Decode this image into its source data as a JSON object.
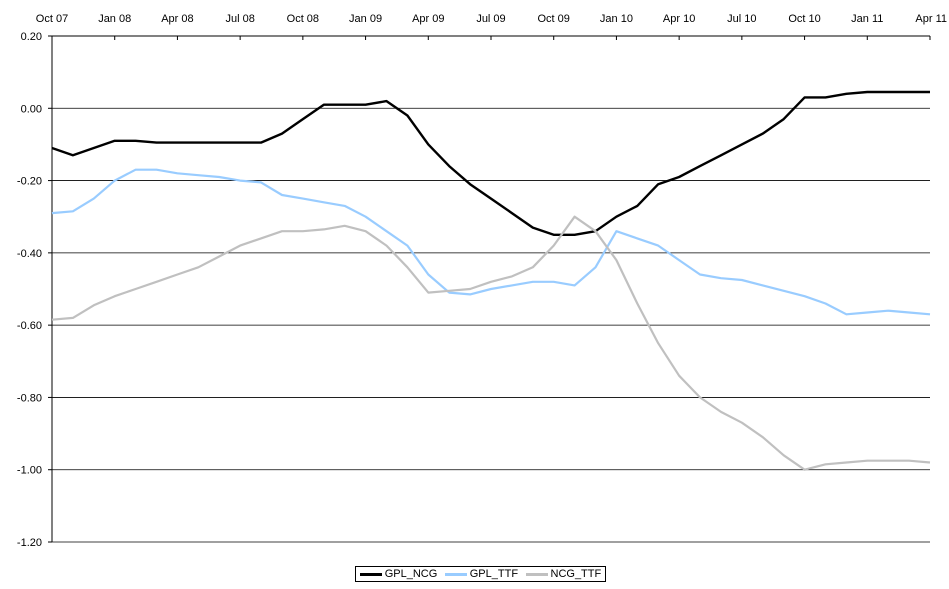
{
  "chart_data": {
    "type": "line",
    "title": "",
    "xlabel": "",
    "ylabel": "",
    "x_ticks": [
      "Oct 07",
      "Jan 08",
      "Apr 08",
      "Jul 08",
      "Oct 08",
      "Jan 09",
      "Apr 09",
      "Jul 09",
      "Oct 09",
      "Jan 10",
      "Apr 10",
      "Jul 10",
      "Oct 10",
      "Jan 11",
      "Apr 11"
    ],
    "x_range": [
      "2007-10",
      "2011-04"
    ],
    "ylim": [
      -1.2,
      0.2
    ],
    "y_ticks": [
      "0.20",
      "0.00",
      "-0.20",
      "-0.40",
      "-0.60",
      "-0.80",
      "-1.00",
      "-1.20"
    ],
    "y_tick_values": [
      0.2,
      0.0,
      -0.2,
      -0.4,
      -0.6,
      -0.8,
      -1.0,
      -1.2
    ],
    "grid": "horizontal",
    "legend_position": "bottom",
    "series": [
      {
        "name": "GPL_NCG",
        "color": "#000000",
        "points": [
          [
            "2007-10",
            -0.11
          ],
          [
            "2007-11",
            -0.13
          ],
          [
            "2007-12",
            -0.11
          ],
          [
            "2008-01",
            -0.09
          ],
          [
            "2008-02",
            -0.09
          ],
          [
            "2008-03",
            -0.095
          ],
          [
            "2008-04",
            -0.095
          ],
          [
            "2008-05",
            -0.095
          ],
          [
            "2008-06",
            -0.095
          ],
          [
            "2008-07",
            -0.095
          ],
          [
            "2008-08",
            -0.095
          ],
          [
            "2008-09",
            -0.07
          ],
          [
            "2008-10",
            -0.03
          ],
          [
            "2008-11",
            0.01
          ],
          [
            "2008-12",
            0.01
          ],
          [
            "2009-01",
            0.01
          ],
          [
            "2009-02",
            0.02
          ],
          [
            "2009-03",
            -0.02
          ],
          [
            "2009-04",
            -0.1
          ],
          [
            "2009-05",
            -0.16
          ],
          [
            "2009-06",
            -0.21
          ],
          [
            "2009-07",
            -0.25
          ],
          [
            "2009-08",
            -0.29
          ],
          [
            "2009-09",
            -0.33
          ],
          [
            "2009-10",
            -0.35
          ],
          [
            "2009-11",
            -0.35
          ],
          [
            "2009-12",
            -0.34
          ],
          [
            "2010-01",
            -0.3
          ],
          [
            "2010-02",
            -0.27
          ],
          [
            "2010-03",
            -0.21
          ],
          [
            "2010-04",
            -0.19
          ],
          [
            "2010-05",
            -0.16
          ],
          [
            "2010-06",
            -0.13
          ],
          [
            "2010-07",
            -0.1
          ],
          [
            "2010-08",
            -0.07
          ],
          [
            "2010-09",
            -0.03
          ],
          [
            "2010-10",
            0.03
          ],
          [
            "2010-11",
            0.03
          ],
          [
            "2010-12",
            0.04
          ],
          [
            "2011-01",
            0.045
          ],
          [
            "2011-02",
            0.045
          ],
          [
            "2011-03",
            0.045
          ],
          [
            "2011-04",
            0.045
          ]
        ]
      },
      {
        "name": "GPL_TTF",
        "color": "#99ccff",
        "points": [
          [
            "2007-10",
            -0.29
          ],
          [
            "2007-11",
            -0.285
          ],
          [
            "2007-12",
            -0.25
          ],
          [
            "2008-01",
            -0.2
          ],
          [
            "2008-02",
            -0.17
          ],
          [
            "2008-03",
            -0.17
          ],
          [
            "2008-04",
            -0.18
          ],
          [
            "2008-05",
            -0.185
          ],
          [
            "2008-06",
            -0.19
          ],
          [
            "2008-07",
            -0.2
          ],
          [
            "2008-08",
            -0.205
          ],
          [
            "2008-09",
            -0.24
          ],
          [
            "2008-10",
            -0.25
          ],
          [
            "2008-11",
            -0.26
          ],
          [
            "2008-12",
            -0.27
          ],
          [
            "2009-01",
            -0.3
          ],
          [
            "2009-02",
            -0.34
          ],
          [
            "2009-03",
            -0.38
          ],
          [
            "2009-04",
            -0.46
          ],
          [
            "2009-05",
            -0.51
          ],
          [
            "2009-06",
            -0.515
          ],
          [
            "2009-07",
            -0.5
          ],
          [
            "2009-08",
            -0.49
          ],
          [
            "2009-09",
            -0.48
          ],
          [
            "2009-10",
            -0.48
          ],
          [
            "2009-11",
            -0.49
          ],
          [
            "2009-12",
            -0.44
          ],
          [
            "2010-01",
            -0.34
          ],
          [
            "2010-02",
            -0.36
          ],
          [
            "2010-03",
            -0.38
          ],
          [
            "2010-04",
            -0.42
          ],
          [
            "2010-05",
            -0.46
          ],
          [
            "2010-06",
            -0.47
          ],
          [
            "2010-07",
            -0.475
          ],
          [
            "2010-08",
            -0.49
          ],
          [
            "2010-09",
            -0.505
          ],
          [
            "2010-10",
            -0.52
          ],
          [
            "2010-11",
            -0.54
          ],
          [
            "2010-12",
            -0.57
          ],
          [
            "2011-01",
            -0.565
          ],
          [
            "2011-02",
            -0.56
          ],
          [
            "2011-03",
            -0.565
          ],
          [
            "2011-04",
            -0.57
          ]
        ]
      },
      {
        "name": "NCG_TTF",
        "color": "#c0c0c0",
        "points": [
          [
            "2007-10",
            -0.585
          ],
          [
            "2007-11",
            -0.58
          ],
          [
            "2007-12",
            -0.545
          ],
          [
            "2008-01",
            -0.52
          ],
          [
            "2008-02",
            -0.5
          ],
          [
            "2008-03",
            -0.48
          ],
          [
            "2008-04",
            -0.46
          ],
          [
            "2008-05",
            -0.44
          ],
          [
            "2008-06",
            -0.41
          ],
          [
            "2008-07",
            -0.38
          ],
          [
            "2008-08",
            -0.36
          ],
          [
            "2008-09",
            -0.34
          ],
          [
            "2008-10",
            -0.34
          ],
          [
            "2008-11",
            -0.335
          ],
          [
            "2008-12",
            -0.325
          ],
          [
            "2009-01",
            -0.34
          ],
          [
            "2009-02",
            -0.38
          ],
          [
            "2009-03",
            -0.44
          ],
          [
            "2009-04",
            -0.51
          ],
          [
            "2009-05",
            -0.505
          ],
          [
            "2009-06",
            -0.5
          ],
          [
            "2009-07",
            -0.48
          ],
          [
            "2009-08",
            -0.465
          ],
          [
            "2009-09",
            -0.44
          ],
          [
            "2009-10",
            -0.38
          ],
          [
            "2009-11",
            -0.3
          ],
          [
            "2009-12",
            -0.34
          ],
          [
            "2010-01",
            -0.42
          ],
          [
            "2010-02",
            -0.54
          ],
          [
            "2010-03",
            -0.65
          ],
          [
            "2010-04",
            -0.74
          ],
          [
            "2010-05",
            -0.8
          ],
          [
            "2010-06",
            -0.84
          ],
          [
            "2010-07",
            -0.87
          ],
          [
            "2010-08",
            -0.91
          ],
          [
            "2010-09",
            -0.96
          ],
          [
            "2010-10",
            -1.0
          ],
          [
            "2010-11",
            -0.985
          ],
          [
            "2010-12",
            -0.98
          ],
          [
            "2011-01",
            -0.975
          ],
          [
            "2011-02",
            -0.975
          ],
          [
            "2011-03",
            -0.975
          ],
          [
            "2011-04",
            -0.98
          ]
        ]
      }
    ]
  },
  "legend": {
    "items": [
      {
        "label": "GPL_NCG",
        "color": "#000000"
      },
      {
        "label": "GPL_TTF",
        "color": "#99ccff"
      },
      {
        "label": "NCG_TTF",
        "color": "#c0c0c0"
      }
    ]
  }
}
